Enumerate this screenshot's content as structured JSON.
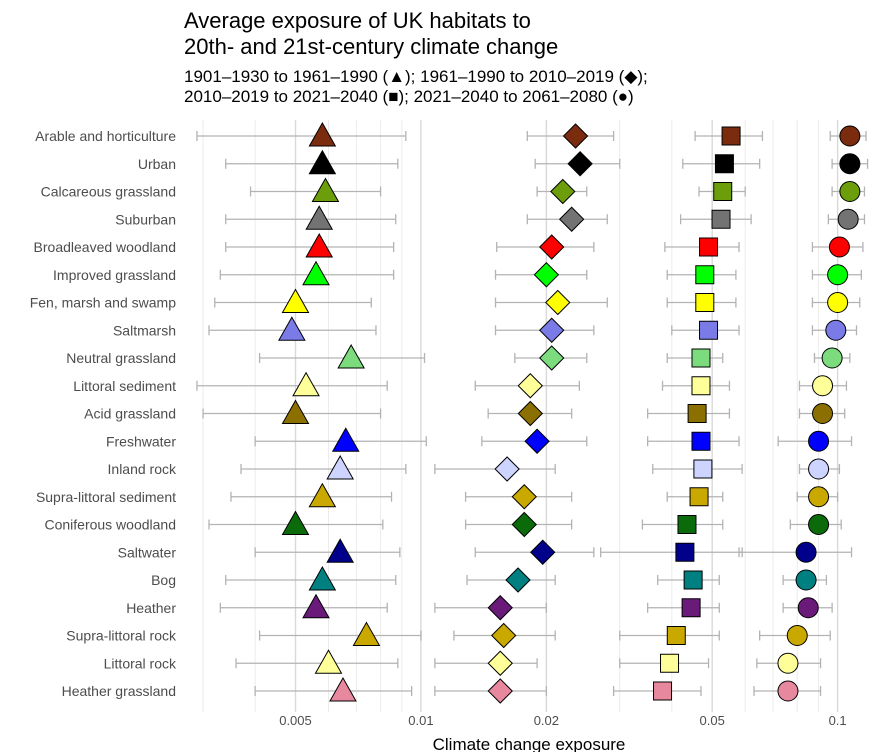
{
  "title": [
    "Average exposure of UK habitats to",
    "20th- and 21st-century climate change"
  ],
  "subtitle": [
    "1901–1930 to 1961–1990 (▲); 1961–1990 to 2010–2019 (◆);",
    "2010–2019 to 2021–2040 (■); 2021–2040 to 2061–2080 (●)"
  ],
  "chart_data": {
    "type": "scatter",
    "xscale": "log",
    "xlabel": "Climate change exposure",
    "xlim": [
      0.0027,
      0.125
    ],
    "xticks": [
      0.005,
      0.01,
      0.02,
      0.05,
      0.1
    ],
    "xtick_labels": [
      "0.005",
      "0.01",
      "0.02",
      "0.05",
      "0.1"
    ],
    "grid": true,
    "series_legend": [
      {
        "period": "1901–1930 to 1961–1990",
        "marker": "triangle"
      },
      {
        "period": "1961–1990 to 2010–2019",
        "marker": "diamond"
      },
      {
        "period": "2010–2019 to 2021–2040",
        "marker": "square"
      },
      {
        "period": "2021–2040 to 2061–2080",
        "marker": "circle"
      }
    ],
    "categories": [
      {
        "name": "Arable and horticulture",
        "color": "#7B2B0E",
        "tri": [
          0.0058,
          0.0029,
          0.0092
        ],
        "dia": [
          0.0235,
          0.018,
          0.029
        ],
        "sq": [
          0.0555,
          0.0455,
          0.066
        ],
        "ci": [
          0.107,
          0.096,
          0.117
        ]
      },
      {
        "name": "Urban",
        "color": "#000000",
        "tri": [
          0.0058,
          0.0034,
          0.0088
        ],
        "dia": [
          0.0241,
          0.0188,
          0.03
        ],
        "sq": [
          0.0535,
          0.0425,
          0.065
        ],
        "ci": [
          0.107,
          0.097,
          0.118
        ]
      },
      {
        "name": "Calcareous grassland",
        "color": "#6B9E0A",
        "tri": [
          0.0059,
          0.0039,
          0.008
        ],
        "dia": [
          0.0219,
          0.019,
          0.025
        ],
        "sq": [
          0.053,
          0.0465,
          0.06
        ],
        "ci": [
          0.107,
          0.097,
          0.116
        ]
      },
      {
        "name": "Suburban",
        "color": "#737373",
        "tri": [
          0.0057,
          0.0034,
          0.0087
        ],
        "dia": [
          0.023,
          0.018,
          0.028
        ],
        "sq": [
          0.0525,
          0.042,
          0.062
        ],
        "ci": [
          0.106,
          0.095,
          0.116
        ]
      },
      {
        "name": "Broadleaved woodland",
        "color": "#FF0000",
        "tri": [
          0.0057,
          0.0034,
          0.0086
        ],
        "dia": [
          0.0206,
          0.0152,
          0.026
        ],
        "sq": [
          0.049,
          0.0385,
          0.058
        ],
        "ci": [
          0.101,
          0.087,
          0.115
        ]
      },
      {
        "name": "Improved grassland",
        "color": "#00FF00",
        "tri": [
          0.0056,
          0.0033,
          0.0086
        ],
        "dia": [
          0.02,
          0.0151,
          0.025
        ],
        "sq": [
          0.048,
          0.039,
          0.057
        ],
        "ci": [
          0.1,
          0.087,
          0.114
        ]
      },
      {
        "name": "Fen, marsh and swamp",
        "color": "#FFFF00",
        "tri": [
          0.005,
          0.0032,
          0.0076
        ],
        "dia": [
          0.0213,
          0.0151,
          0.028
        ],
        "sq": [
          0.048,
          0.039,
          0.057
        ],
        "ci": [
          0.1,
          0.087,
          0.113
        ]
      },
      {
        "name": "Saltmarsh",
        "color": "#7B7BE8",
        "tri": [
          0.0049,
          0.0031,
          0.0078
        ],
        "dia": [
          0.0206,
          0.0151,
          0.026
        ],
        "sq": [
          0.049,
          0.04,
          0.058
        ],
        "ci": [
          0.099,
          0.087,
          0.111
        ]
      },
      {
        "name": "Neutral grassland",
        "color": "#7CDB7C",
        "tri": [
          0.0068,
          0.0041,
          0.0102
        ],
        "dia": [
          0.0206,
          0.0168,
          0.025
        ],
        "sq": [
          0.047,
          0.039,
          0.053
        ],
        "ci": [
          0.097,
          0.088,
          0.107
        ]
      },
      {
        "name": "Littoral sediment",
        "color": "#FFFF99",
        "tri": [
          0.0053,
          0.0029,
          0.0083
        ],
        "dia": [
          0.0183,
          0.0135,
          0.024
        ],
        "sq": [
          0.047,
          0.038,
          0.055
        ],
        "ci": [
          0.092,
          0.081,
          0.105
        ]
      },
      {
        "name": "Acid grassland",
        "color": "#8B6F00",
        "tri": [
          0.005,
          0.003,
          0.008
        ],
        "dia": [
          0.0183,
          0.0145,
          0.023
        ],
        "sq": [
          0.046,
          0.035,
          0.055
        ],
        "ci": [
          0.092,
          0.081,
          0.104
        ]
      },
      {
        "name": "Freshwater",
        "color": "#0000FF",
        "tri": [
          0.0066,
          0.004,
          0.0103
        ],
        "dia": [
          0.019,
          0.014,
          0.025
        ],
        "sq": [
          0.047,
          0.035,
          0.058
        ],
        "ci": [
          0.09,
          0.072,
          0.108
        ]
      },
      {
        "name": "Inland rock",
        "color": "#CCD4FF",
        "tri": [
          0.0064,
          0.0037,
          0.0092
        ],
        "dia": [
          0.0161,
          0.0108,
          0.021
        ],
        "sq": [
          0.0475,
          0.036,
          0.059
        ],
        "ci": [
          0.09,
          0.081,
          0.101
        ]
      },
      {
        "name": "Supra-littoral sediment",
        "color": "#C9A800",
        "tri": [
          0.0058,
          0.0035,
          0.0085
        ],
        "dia": [
          0.0177,
          0.0128,
          0.023
        ],
        "sq": [
          0.0465,
          0.039,
          0.053
        ],
        "ci": [
          0.09,
          0.08,
          0.1
        ]
      },
      {
        "name": "Coniferous woodland",
        "color": "#0B6B0B",
        "tri": [
          0.005,
          0.0031,
          0.0081
        ],
        "dia": [
          0.0177,
          0.0128,
          0.023
        ],
        "sq": [
          0.0435,
          0.034,
          0.053
        ],
        "ci": [
          0.09,
          0.077,
          0.102
        ]
      },
      {
        "name": "Saltwater",
        "color": "#00008B",
        "tri": [
          0.0064,
          0.004,
          0.0089
        ],
        "dia": [
          0.0196,
          0.0135,
          0.026
        ],
        "sq": [
          0.043,
          0.027,
          0.059
        ],
        "ci": [
          0.084,
          0.058,
          0.108
        ]
      },
      {
        "name": "Bog",
        "color": "#008080",
        "tri": [
          0.0058,
          0.0034,
          0.0087
        ],
        "dia": [
          0.0171,
          0.0129,
          0.021
        ],
        "sq": [
          0.045,
          0.037,
          0.052
        ],
        "ci": [
          0.084,
          0.074,
          0.094
        ]
      },
      {
        "name": "Heather",
        "color": "#6A1B7A",
        "tri": [
          0.0056,
          0.0033,
          0.0083
        ],
        "dia": [
          0.0155,
          0.0108,
          0.02
        ],
        "sq": [
          0.0445,
          0.035,
          0.052
        ],
        "ci": [
          0.085,
          0.074,
          0.097
        ]
      },
      {
        "name": "Supra-littoral rock",
        "color": "#C9A800",
        "tri": [
          0.0074,
          0.0041,
          0.01
        ],
        "dia": [
          0.0158,
          0.012,
          0.021
        ],
        "sq": [
          0.041,
          0.03,
          0.052
        ],
        "ci": [
          0.08,
          0.065,
          0.096
        ]
      },
      {
        "name": "Littoral rock",
        "color": "#FFFF99",
        "tri": [
          0.006,
          0.0036,
          0.0088
        ],
        "dia": [
          0.0155,
          0.0108,
          0.019
        ],
        "sq": [
          0.0395,
          0.03,
          0.049
        ],
        "ci": [
          0.076,
          0.064,
          0.091
        ]
      },
      {
        "name": "Heather grassland",
        "color": "#E8889E",
        "tri": [
          0.0065,
          0.004,
          0.0095
        ],
        "dia": [
          0.0155,
          0.0108,
          0.02
        ],
        "sq": [
          0.038,
          0.029,
          0.047
        ],
        "ci": [
          0.076,
          0.063,
          0.091
        ]
      }
    ]
  }
}
